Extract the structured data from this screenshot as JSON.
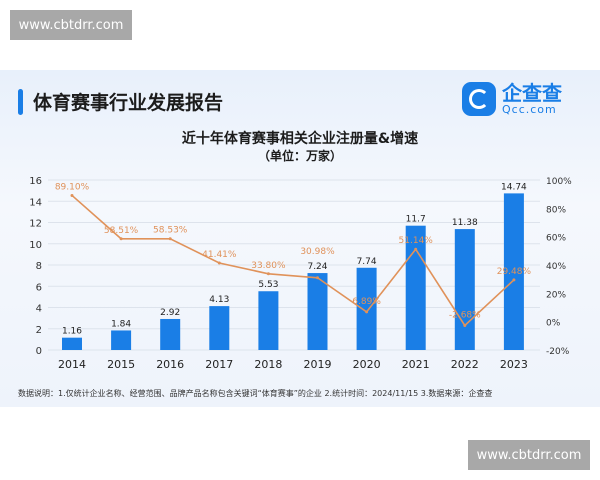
{
  "watermarks": [
    "www.cbtdrr.com",
    "www.cbtdrr.com"
  ],
  "report_title": "体育赛事行业发展报告",
  "logo": {
    "name": "企查查",
    "sub": "Qcc.com"
  },
  "footnote": "数据说明：1.仅统计企业名称、经营范围、品牌产品名称包含关键词“体育赛事”的企业  2.统计时间：2024/11/15   3.数据来源：企查查",
  "colors": {
    "bar": "#1a7ee6",
    "line": "#e0925a",
    "accent": "#1a7ee6"
  },
  "chart_data": {
    "type": "bar+line",
    "title": "近十年体育赛事相关企业注册量&增速",
    "subtitle": "（单位：万家）",
    "categories": [
      "2014",
      "2015",
      "2016",
      "2017",
      "2018",
      "2019",
      "2020",
      "2021",
      "2022",
      "2023"
    ],
    "series": [
      {
        "type": "bar",
        "axis": "left",
        "values": [
          1.16,
          1.84,
          2.92,
          4.13,
          5.53,
          7.24,
          7.74,
          11.7,
          11.38,
          14.74
        ],
        "labels": [
          "1.16",
          "1.84",
          "2.92",
          "4.13",
          "5.53",
          "7.24",
          "7.74",
          "11.7",
          "11.38",
          "14.74"
        ]
      },
      {
        "type": "line",
        "axis": "right",
        "values": [
          89.1,
          58.51,
          58.53,
          41.41,
          33.8,
          30.98,
          6.89,
          51.14,
          -2.68,
          29.48
        ],
        "labels": [
          "89.10%",
          "58.51%",
          "58.53%",
          "41.41%",
          "33.80%",
          "30.98%",
          "6.89%",
          "51.14%",
          "-2.68%",
          "29.48%"
        ]
      }
    ],
    "left_axis": {
      "ylim": [
        0,
        16
      ],
      "ticks": [
        "0",
        "2",
        "4",
        "6",
        "8",
        "10",
        "12",
        "14",
        "16"
      ]
    },
    "right_axis": {
      "ylim": [
        -20,
        100
      ],
      "ticks": [
        "-20%",
        "0%",
        "20%",
        "40%",
        "60%",
        "80%",
        "100%"
      ]
    },
    "grid": true,
    "legend": "none"
  }
}
